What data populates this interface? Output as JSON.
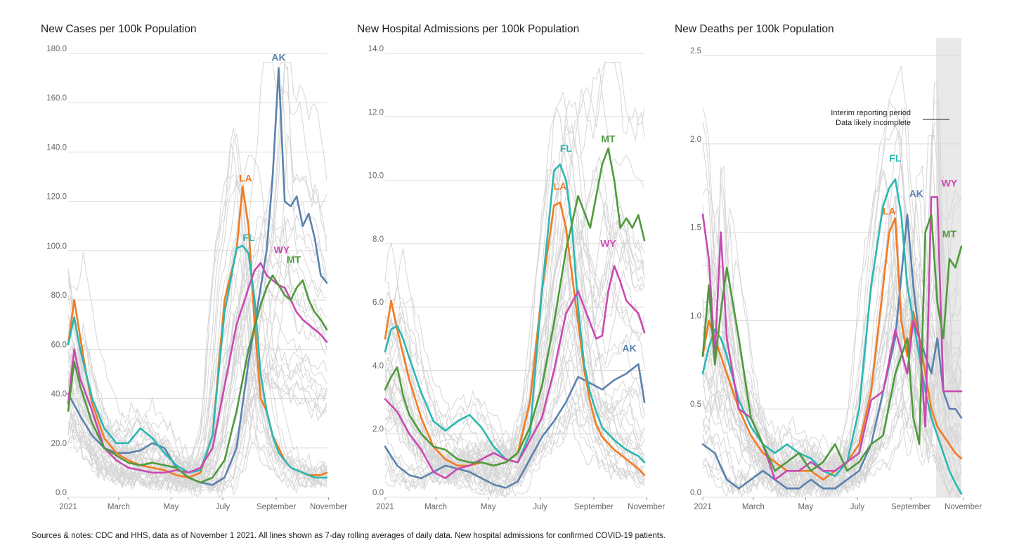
{
  "footer": "Sources & notes: CDC and HHS, data as of November 1 2021. All lines shown as 7-day rolling averages of daily data. New hospital admissions for confirmed COVID-19 patients.",
  "series_colors": {
    "AK": "#5b82ad",
    "LA": "#f47a22",
    "FL": "#2ab8b2",
    "WY": "#c94ab1",
    "MT": "#4f9a3c",
    "other": "#d6d6d6"
  },
  "chart_data": [
    {
      "type": "line",
      "title": "New Cases per 100k Population",
      "x_ticks": [
        "2021",
        "March",
        "May",
        "July",
        "September",
        "November"
      ],
      "y_ticks": [
        "0.0",
        "20.0",
        "40.0",
        "60.0",
        "80.0",
        "100.0",
        "120.0",
        "140.0",
        "160.0",
        "180.0"
      ],
      "ylim": [
        0,
        180
      ],
      "grid": true,
      "x_unit": "week of 2021 (Jan 1 to Nov 1)",
      "series": [
        {
          "name": "AK",
          "x": [
            0,
            2,
            4,
            6,
            8,
            10,
            12,
            14,
            16,
            18,
            20,
            22,
            24,
            26,
            28,
            30,
            32,
            33,
            34,
            35,
            36,
            37,
            38,
            39,
            40,
            41,
            42,
            43
          ],
          "values": [
            42,
            33,
            25,
            20,
            18,
            18,
            19,
            22,
            20,
            12,
            8,
            6,
            5,
            8,
            20,
            55,
            85,
            100,
            130,
            174,
            120,
            118,
            122,
            110,
            115,
            105,
            90,
            87
          ]
        },
        {
          "name": "LA",
          "x": [
            0,
            1,
            2,
            3,
            4,
            6,
            8,
            10,
            12,
            14,
            16,
            18,
            20,
            22,
            24,
            26,
            28,
            29,
            30,
            31,
            32,
            33,
            34,
            35,
            36,
            37,
            38,
            39,
            40,
            41,
            42,
            43
          ],
          "values": [
            62,
            80,
            65,
            50,
            38,
            24,
            18,
            15,
            13,
            12,
            11,
            9,
            8,
            10,
            25,
            80,
            100,
            126,
            110,
            70,
            40,
            35,
            25,
            20,
            15,
            12,
            11,
            10,
            9,
            9,
            9,
            10
          ]
        },
        {
          "name": "FL",
          "x": [
            0,
            1,
            2,
            3,
            4,
            6,
            8,
            10,
            12,
            14,
            16,
            18,
            20,
            22,
            24,
            26,
            28,
            29,
            30,
            31,
            32,
            33,
            34,
            35,
            36,
            37,
            38,
            39,
            40,
            41,
            42,
            43
          ],
          "values": [
            62,
            73,
            60,
            50,
            40,
            28,
            22,
            22,
            28,
            24,
            18,
            13,
            10,
            11,
            25,
            75,
            101,
            102,
            99,
            80,
            50,
            35,
            25,
            18,
            15,
            12,
            11,
            10,
            9,
            8,
            8,
            8
          ]
        },
        {
          "name": "WY",
          "x": [
            0,
            1,
            2,
            4,
            6,
            8,
            10,
            12,
            14,
            16,
            18,
            20,
            22,
            24,
            26,
            28,
            30,
            31,
            32,
            33,
            34,
            35,
            36,
            37,
            38,
            39,
            40,
            41,
            42,
            43
          ],
          "values": [
            38,
            60,
            48,
            35,
            20,
            15,
            12,
            11,
            10,
            10,
            11,
            10,
            12,
            20,
            45,
            70,
            85,
            92,
            95,
            90,
            88,
            86,
            85,
            80,
            75,
            72,
            70,
            68,
            66,
            63
          ]
        },
        {
          "name": "MT",
          "x": [
            0,
            1,
            2,
            4,
            6,
            8,
            10,
            12,
            14,
            16,
            18,
            20,
            22,
            24,
            26,
            28,
            30,
            32,
            33,
            34,
            35,
            36,
            37,
            38,
            39,
            40,
            41,
            42,
            43
          ],
          "values": [
            35,
            55,
            45,
            30,
            20,
            17,
            14,
            13,
            14,
            13,
            12,
            8,
            6,
            8,
            15,
            35,
            60,
            78,
            85,
            90,
            86,
            82,
            80,
            85,
            88,
            80,
            75,
            72,
            68
          ]
        }
      ],
      "annotations": []
    },
    {
      "type": "line",
      "title": "New Hospital Admissions per 100k Population",
      "x_ticks": [
        "2021",
        "March",
        "May",
        "July",
        "September",
        "November"
      ],
      "y_ticks": [
        "0.0",
        "2.0",
        "4.0",
        "6.0",
        "8.0",
        "10.0",
        "12.0",
        "14.0"
      ],
      "ylim": [
        0,
        14
      ],
      "grid": true,
      "x_unit": "week of 2021 (Jan 1 to Nov 1)",
      "series": [
        {
          "name": "AK",
          "x": [
            0,
            2,
            4,
            6,
            8,
            10,
            12,
            14,
            16,
            18,
            20,
            22,
            24,
            26,
            28,
            30,
            32,
            34,
            36,
            38,
            40,
            42,
            43
          ],
          "values": [
            1.6,
            1.0,
            0.7,
            0.6,
            0.8,
            1.0,
            0.9,
            0.8,
            0.6,
            0.4,
            0.3,
            0.5,
            1.2,
            1.9,
            2.4,
            3.0,
            3.8,
            3.6,
            3.4,
            3.7,
            3.9,
            4.2,
            3.0
          ]
        },
        {
          "name": "LA",
          "x": [
            0,
            1,
            2,
            3,
            4,
            6,
            8,
            10,
            12,
            14,
            16,
            18,
            20,
            22,
            24,
            26,
            28,
            29,
            30,
            31,
            32,
            33,
            34,
            35,
            36,
            38,
            40,
            42,
            43
          ],
          "values": [
            5.0,
            6.2,
            5.3,
            4.5,
            3.7,
            2.5,
            1.6,
            1.2,
            1.0,
            1.0,
            1.1,
            1.0,
            1.1,
            1.4,
            3.0,
            6.5,
            9.2,
            9.3,
            8.5,
            7.0,
            5.5,
            4.0,
            3.0,
            2.3,
            1.9,
            1.5,
            1.2,
            0.9,
            0.7
          ]
        },
        {
          "name": "FL",
          "x": [
            0,
            1,
            2,
            3,
            4,
            6,
            8,
            10,
            12,
            14,
            16,
            18,
            20,
            22,
            24,
            26,
            28,
            29,
            30,
            31,
            32,
            33,
            34,
            35,
            36,
            38,
            40,
            42,
            43
          ],
          "values": [
            4.6,
            5.3,
            5.4,
            5.0,
            4.4,
            3.3,
            2.4,
            2.1,
            2.4,
            2.6,
            2.2,
            1.6,
            1.2,
            1.1,
            2.0,
            6.5,
            10.3,
            10.5,
            10.0,
            8.5,
            6.0,
            4.2,
            3.3,
            2.7,
            2.2,
            1.8,
            1.5,
            1.3,
            1.1
          ]
        },
        {
          "name": "WY",
          "x": [
            0,
            2,
            4,
            6,
            8,
            10,
            12,
            14,
            16,
            18,
            20,
            22,
            24,
            26,
            28,
            30,
            32,
            34,
            35,
            36,
            37,
            38,
            39,
            40,
            41,
            42,
            43
          ],
          "values": [
            3.1,
            2.7,
            2.0,
            1.5,
            0.8,
            0.6,
            0.9,
            1.0,
            1.2,
            1.4,
            1.2,
            1.1,
            1.8,
            2.5,
            4.0,
            5.8,
            6.5,
            5.5,
            5.0,
            5.1,
            6.5,
            7.3,
            6.8,
            6.2,
            6.0,
            5.8,
            5.2
          ]
        },
        {
          "name": "MT",
          "x": [
            0,
            1,
            2,
            3,
            4,
            6,
            8,
            10,
            12,
            14,
            16,
            18,
            20,
            22,
            24,
            26,
            28,
            30,
            32,
            34,
            36,
            37,
            38,
            39,
            40,
            41,
            42,
            43
          ],
          "values": [
            3.4,
            3.8,
            4.1,
            3.2,
            2.6,
            2.0,
            1.6,
            1.5,
            1.2,
            1.1,
            1.1,
            1.0,
            1.1,
            1.4,
            2.2,
            3.5,
            5.5,
            7.8,
            9.5,
            8.5,
            10.5,
            11.0,
            10.0,
            8.5,
            8.8,
            8.5,
            8.9,
            8.1
          ]
        }
      ],
      "annotations": []
    },
    {
      "type": "line",
      "title": "New Deaths per 100k Population",
      "x_ticks": [
        "2021",
        "March",
        "May",
        "July",
        "September",
        "November"
      ],
      "y_ticks": [
        "0.0",
        "0.5",
        "1.0",
        "1.5",
        "2.0",
        "2.5"
      ],
      "ylim": [
        0,
        2.6
      ],
      "grid": true,
      "x_unit": "week of 2021 (Jan 1 to Nov 1)",
      "series": [
        {
          "name": "AK",
          "x": [
            0,
            2,
            4,
            6,
            8,
            10,
            12,
            14,
            16,
            18,
            20,
            22,
            24,
            26,
            28,
            30,
            32,
            34,
            35,
            36,
            37,
            38,
            39,
            40,
            41,
            42,
            43
          ],
          "values": [
            0.3,
            0.25,
            0.1,
            0.05,
            0.1,
            0.15,
            0.1,
            0.05,
            0.05,
            0.1,
            0.05,
            0.05,
            0.1,
            0.15,
            0.3,
            0.6,
            0.9,
            1.6,
            1.2,
            0.9,
            0.8,
            0.7,
            0.9,
            0.6,
            0.5,
            0.5,
            0.45
          ]
        },
        {
          "name": "LA",
          "x": [
            0,
            1,
            2,
            3,
            4,
            6,
            8,
            10,
            12,
            14,
            16,
            18,
            20,
            22,
            24,
            26,
            28,
            30,
            31,
            32,
            33,
            34,
            35,
            36,
            37,
            38,
            39,
            40,
            41,
            42,
            43
          ],
          "values": [
            0.8,
            1.0,
            0.9,
            0.8,
            0.7,
            0.5,
            0.35,
            0.25,
            0.2,
            0.15,
            0.15,
            0.15,
            0.1,
            0.15,
            0.2,
            0.3,
            0.6,
            1.2,
            1.5,
            1.58,
            1.0,
            0.8,
            1.05,
            0.9,
            0.7,
            0.5,
            0.4,
            0.35,
            0.3,
            0.25,
            0.22
          ]
        },
        {
          "name": "FL",
          "x": [
            0,
            1,
            2,
            3,
            4,
            6,
            8,
            10,
            12,
            14,
            16,
            18,
            20,
            22,
            24,
            26,
            28,
            30,
            31,
            32,
            33,
            34,
            35,
            36,
            37,
            38,
            39,
            40,
            41,
            42,
            43
          ],
          "values": [
            0.7,
            0.85,
            0.95,
            0.9,
            0.8,
            0.55,
            0.4,
            0.3,
            0.25,
            0.3,
            0.25,
            0.22,
            0.15,
            0.12,
            0.2,
            0.5,
            1.2,
            1.65,
            1.75,
            1.8,
            1.6,
            1.2,
            1.0,
            0.8,
            0.6,
            0.45,
            0.35,
            0.25,
            0.15,
            0.08,
            0.02
          ]
        },
        {
          "name": "WY",
          "x": [
            0,
            1,
            2,
            3,
            4,
            6,
            8,
            10,
            12,
            14,
            16,
            18,
            20,
            22,
            24,
            26,
            28,
            30,
            32,
            34,
            35,
            36,
            37,
            38,
            39,
            40,
            41,
            42,
            43
          ],
          "values": [
            1.6,
            1.35,
            0.8,
            1.5,
            0.9,
            0.5,
            0.45,
            0.3,
            0.1,
            0.15,
            0.15,
            0.2,
            0.15,
            0.15,
            0.2,
            0.25,
            0.55,
            0.6,
            0.95,
            0.7,
            1.0,
            0.9,
            0.4,
            1.7,
            1.7,
            0.6,
            0.6,
            0.6,
            0.6
          ]
        },
        {
          "name": "MT",
          "x": [
            0,
            1,
            2,
            3,
            4,
            6,
            8,
            10,
            12,
            14,
            16,
            18,
            20,
            22,
            24,
            26,
            28,
            30,
            32,
            34,
            35,
            36,
            37,
            38,
            39,
            40,
            41,
            42,
            43
          ],
          "values": [
            0.8,
            1.2,
            0.75,
            1.05,
            1.3,
            0.9,
            0.45,
            0.3,
            0.15,
            0.2,
            0.25,
            0.15,
            0.2,
            0.3,
            0.15,
            0.2,
            0.3,
            0.35,
            0.7,
            0.9,
            0.45,
            0.3,
            1.5,
            1.6,
            1.1,
            0.9,
            1.35,
            1.3,
            1.42
          ]
        }
      ],
      "annotations": [
        "Interim reporting period",
        "Data likely incomplete"
      ]
    }
  ]
}
